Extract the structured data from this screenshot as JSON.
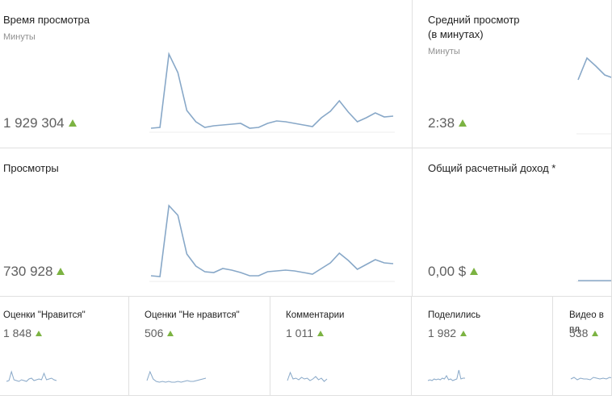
{
  "cards": [
    {
      "title": "Время просмотра",
      "subtitle": "Минуты",
      "value": "1 929 304",
      "sparkline": {
        "ylim": [
          0,
          100
        ],
        "values": [
          4,
          5,
          96,
          73,
          26,
          12,
          5,
          7,
          8,
          9,
          10,
          4,
          5,
          10,
          13,
          12,
          10,
          8,
          6,
          17,
          25,
          38,
          24,
          12,
          17,
          23,
          18,
          19
        ]
      }
    },
    {
      "title": "Средний просмотр (в минутах)",
      "subtitle": "Минуты",
      "value": "2:38",
      "sparkline": {
        "ylim": [
          0,
          100
        ],
        "values": [
          66,
          93,
          83,
          72,
          68
        ]
      }
    },
    {
      "title": "Просмотры",
      "value": "730 928",
      "sparkline": {
        "ylim": [
          0,
          100
        ],
        "values": [
          6,
          5,
          93,
          81,
          33,
          18,
          11,
          10,
          15,
          13,
          10,
          6,
          6,
          11,
          12,
          13,
          12,
          10,
          8,
          15,
          22,
          34,
          25,
          14,
          20,
          26,
          22,
          21
        ]
      }
    },
    {
      "title": "Общий расчетный доход *",
      "value": "0,00 $",
      "sparkline": {
        "ylim": [
          0,
          100
        ],
        "values": [
          0,
          0,
          0,
          0,
          0
        ]
      }
    },
    {
      "title": "Оценки \"Нравится\"",
      "value": "1 848",
      "sparkline": {
        "ylim": [
          0,
          20
        ],
        "values": [
          2,
          3,
          14,
          4,
          3,
          2,
          4,
          3,
          2,
          5,
          6,
          3,
          4,
          5,
          4,
          12,
          4,
          5,
          6,
          4,
          3
        ]
      }
    },
    {
      "title": "Оценки \"Не нравится\"",
      "value": "506",
      "sparkline": {
        "ylim": [
          0,
          20
        ],
        "values": [
          3,
          14,
          5,
          2,
          1,
          2,
          1,
          2,
          1,
          1,
          2,
          1,
          2,
          3,
          2,
          2,
          3,
          4,
          5,
          6
        ]
      }
    },
    {
      "title": "Комментарии",
      "value": "1 011",
      "sparkline": {
        "ylim": [
          0,
          20
        ],
        "values": [
          3,
          13,
          5,
          6,
          4,
          7,
          5,
          6,
          3,
          5,
          8,
          4,
          6,
          2,
          5
        ]
      }
    },
    {
      "title": "Поделились",
      "value": "1 982",
      "sparkline": {
        "ylim": [
          0,
          20
        ],
        "values": [
          3,
          4,
          3,
          5,
          4,
          5,
          4,
          6,
          5,
          9,
          4,
          5,
          3,
          4,
          5,
          16,
          5,
          6,
          6
        ]
      }
    },
    {
      "title": "Видео в пл",
      "value": "538",
      "sparkline": {
        "ylim": [
          0,
          20
        ],
        "values": [
          5,
          7,
          4,
          6,
          5,
          5,
          4,
          7,
          6,
          5,
          6,
          5,
          7,
          6,
          5,
          6
        ]
      }
    }
  ]
}
